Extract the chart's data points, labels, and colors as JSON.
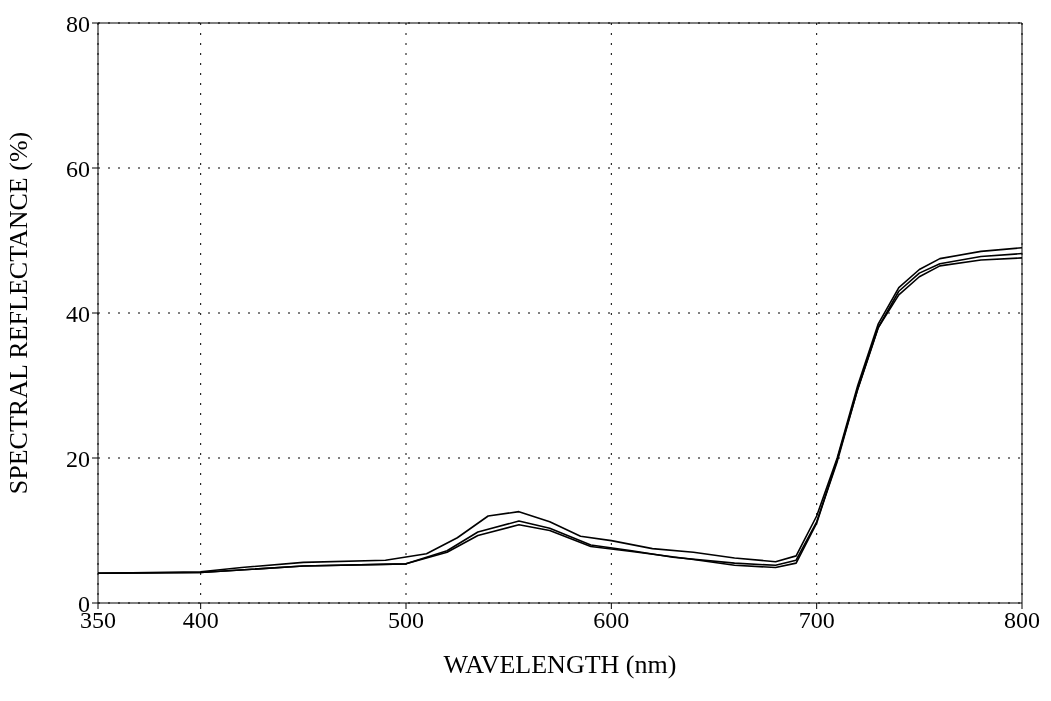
{
  "chart_data": {
    "type": "line",
    "xlabel": "WAVELENGTH (nm)",
    "ylabel": "SPECTRAL REFLECTANCE (%)",
    "xlim": [
      350,
      800
    ],
    "xticks": [
      350,
      400,
      500,
      600,
      700,
      800
    ],
    "ylim": [
      0,
      80
    ],
    "yticks": [
      0,
      20,
      40,
      60,
      80
    ],
    "grid": true,
    "marker": "none",
    "line_style": "solid",
    "series": [
      {
        "color": "#000000",
        "x": [
          350,
          400,
          420,
          450,
          490,
          510,
          525,
          540,
          555,
          570,
          585,
          600,
          620,
          640,
          660,
          680,
          690,
          700,
          710,
          720,
          730,
          740,
          750,
          760,
          780,
          800
        ],
        "values": [
          4.1,
          4.3,
          4.9,
          5.6,
          5.9,
          6.8,
          9,
          12,
          12.6,
          11.2,
          9.2,
          8.6,
          7.5,
          7,
          6.2,
          5.7,
          6.5,
          12,
          20,
          30,
          38.5,
          43.5,
          46,
          47.5,
          48.5,
          49
        ]
      },
      {
        "color": "#000000",
        "x": [
          350,
          400,
          450,
          500,
          520,
          535,
          555,
          570,
          590,
          610,
          630,
          660,
          680,
          690,
          700,
          710,
          720,
          730,
          740,
          750,
          760,
          780,
          800
        ],
        "values": [
          4.1,
          4.2,
          5.1,
          5.4,
          7.2,
          9.8,
          11.3,
          10.3,
          8,
          7.2,
          6.3,
          5.5,
          5.2,
          5.9,
          11.2,
          19.5,
          29.5,
          38,
          43,
          45.5,
          46.8,
          47.8,
          48.2
        ]
      },
      {
        "color": "#000000",
        "x": [
          350,
          400,
          450,
          500,
          520,
          535,
          555,
          570,
          590,
          610,
          640,
          660,
          680,
          690,
          700,
          710,
          720,
          730,
          740,
          750,
          760,
          780,
          800
        ],
        "values": [
          4.1,
          4.2,
          5.1,
          5.4,
          7.0,
          9.3,
          10.8,
          10,
          7.8,
          7.1,
          6,
          5.2,
          4.9,
          5.5,
          11,
          19.8,
          29.5,
          38,
          42.5,
          45,
          46.5,
          47.3,
          47.6
        ]
      }
    ]
  }
}
